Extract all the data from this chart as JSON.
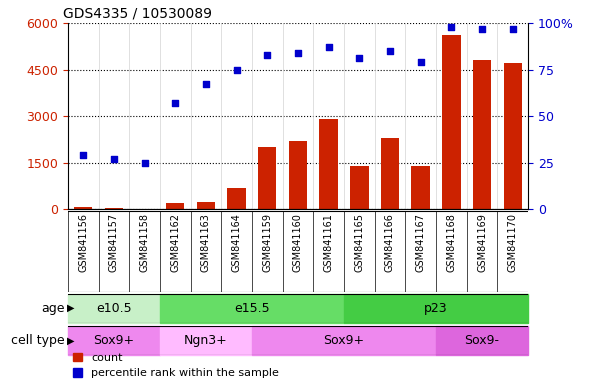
{
  "title": "GDS4335 / 10530089",
  "samples": [
    "GSM841156",
    "GSM841157",
    "GSM841158",
    "GSM841162",
    "GSM841163",
    "GSM841164",
    "GSM841159",
    "GSM841160",
    "GSM841161",
    "GSM841165",
    "GSM841166",
    "GSM841167",
    "GSM841168",
    "GSM841169",
    "GSM841170"
  ],
  "sample_short": [
    "156",
    "157",
    "158",
    "162",
    "163",
    "164",
    "159",
    "160",
    "161",
    "165",
    "166",
    "167",
    "168",
    "169",
    "170"
  ],
  "counts": [
    60,
    30,
    15,
    200,
    230,
    700,
    2000,
    2200,
    2900,
    1400,
    2300,
    1400,
    5600,
    4800,
    4700
  ],
  "percentiles": [
    29,
    27,
    25,
    57,
    67,
    75,
    83,
    84,
    87,
    81,
    85,
    79,
    98,
    97,
    97
  ],
  "age_groups": [
    {
      "label": "e10.5",
      "start": 0,
      "end": 3,
      "color": "#c8f0c8"
    },
    {
      "label": "e15.5",
      "start": 3,
      "end": 9,
      "color": "#66dd66"
    },
    {
      "label": "p23",
      "start": 9,
      "end": 15,
      "color": "#44cc44"
    }
  ],
  "cell_type_groups": [
    {
      "label": "Sox9+",
      "start": 0,
      "end": 3,
      "color": "#ee88ee"
    },
    {
      "label": "Ngn3+",
      "start": 3,
      "end": 6,
      "color": "#ffbbff"
    },
    {
      "label": "Sox9+",
      "start": 6,
      "end": 12,
      "color": "#ee88ee"
    },
    {
      "label": "Sox9-",
      "start": 12,
      "end": 15,
      "color": "#dd66dd"
    }
  ],
  "bar_color": "#cc2200",
  "dot_color": "#0000cc",
  "ylim_left": [
    0,
    6000
  ],
  "ylim_right": [
    0,
    100
  ],
  "yticks_left": [
    0,
    1500,
    3000,
    4500,
    6000
  ],
  "ytick_labels_left": [
    "0",
    "1500",
    "3000",
    "4500",
    "6000"
  ],
  "yticks_right": [
    0,
    25,
    50,
    75,
    100
  ],
  "ytick_labels_right": [
    "0",
    "25",
    "50",
    "75",
    "100%"
  ],
  "legend_count_label": "count",
  "legend_pct_label": "percentile rank within the sample",
  "age_label": "age",
  "cell_type_label": "cell type",
  "tick_prefix": "GSM841"
}
